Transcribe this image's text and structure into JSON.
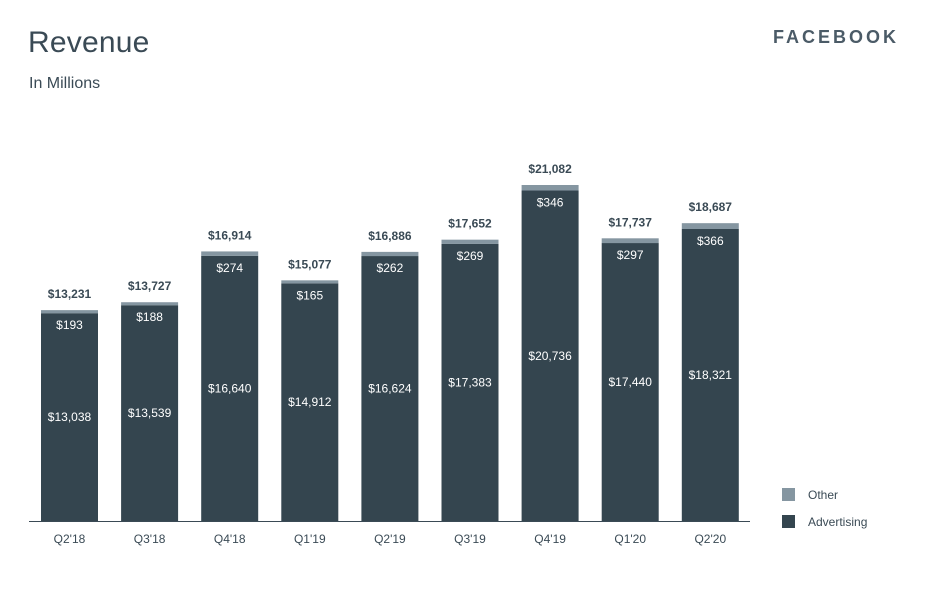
{
  "header": {
    "title": "Revenue",
    "subtitle": "In Millions",
    "brand": "FACEBOOK"
  },
  "colors": {
    "advertising": "#34454f",
    "other": "#8596a1",
    "axis": "#3a4a55",
    "text": "#3a4a55"
  },
  "chart_data": {
    "type": "bar",
    "stacked": true,
    "title": "Revenue",
    "subtitle": "In Millions",
    "categories": [
      "Q2'18",
      "Q3'18",
      "Q4'18",
      "Q1'19",
      "Q2'19",
      "Q3'19",
      "Q4'19",
      "Q1'20",
      "Q2'20"
    ],
    "series": [
      {
        "name": "Advertising",
        "values": [
          13038,
          13539,
          16640,
          14912,
          16624,
          17383,
          20736,
          17440,
          18321
        ],
        "labels": [
          "$13,038",
          "$13,539",
          "$16,640",
          "$14,912",
          "$16,624",
          "$17,383",
          "$20,736",
          "$17,440",
          "$18,321"
        ]
      },
      {
        "name": "Other",
        "values": [
          193,
          188,
          274,
          165,
          262,
          269,
          346,
          297,
          366
        ],
        "labels": [
          "$193",
          "$188",
          "$274",
          "$165",
          "$262",
          "$269",
          "$346",
          "$297",
          "$366"
        ]
      }
    ],
    "totals": [
      13231,
      13727,
      16914,
      15077,
      16886,
      17652,
      21082,
      17737,
      18687
    ],
    "total_labels": [
      "$13,231",
      "$13,727",
      "$16,914",
      "$15,077",
      "$16,886",
      "$17,652",
      "$21,082",
      "$17,737",
      "$18,687"
    ],
    "ylim": [
      0,
      21082
    ],
    "grid": false,
    "legend": "bottom-right"
  }
}
